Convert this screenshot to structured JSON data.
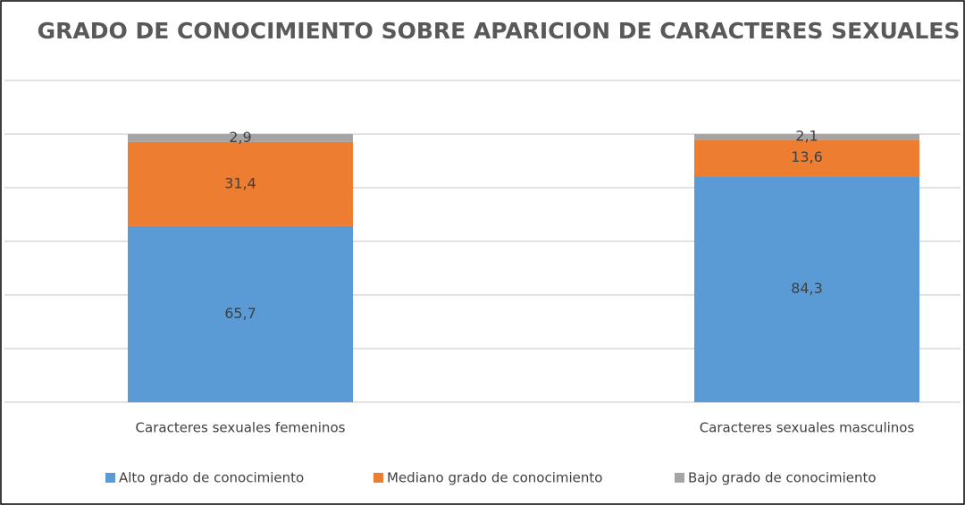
{
  "chart_data": {
    "type": "stacked_bar",
    "title": "GRADO DE CONOCIMIENTO SOBRE APARICION DE CARACTERES SEXUALES",
    "categories": [
      "Caracteres sexuales femeninos",
      "Caracteres sexuales masculinos"
    ],
    "series": [
      {
        "name": "Alto grado de conocimiento",
        "color": "#5b9bd5",
        "values": [
          65.7,
          84.3
        ],
        "value_labels": [
          "65,7",
          "84,3"
        ]
      },
      {
        "name": "Mediano grado de conocimiento",
        "color": "#ed7d31",
        "values": [
          31.4,
          13.6
        ],
        "value_labels": [
          "31,4",
          "13,6"
        ]
      },
      {
        "name": "Bajo grado de conocimiento",
        "color": "#a5a5a5",
        "values": [
          2.9,
          2.1
        ],
        "value_labels": [
          "2,9",
          "2,1"
        ]
      }
    ],
    "ylim": [
      0,
      120
    ],
    "yticks": [
      0,
      20,
      40,
      60,
      80,
      100,
      120
    ],
    "grid": true,
    "legend": "bottom"
  }
}
